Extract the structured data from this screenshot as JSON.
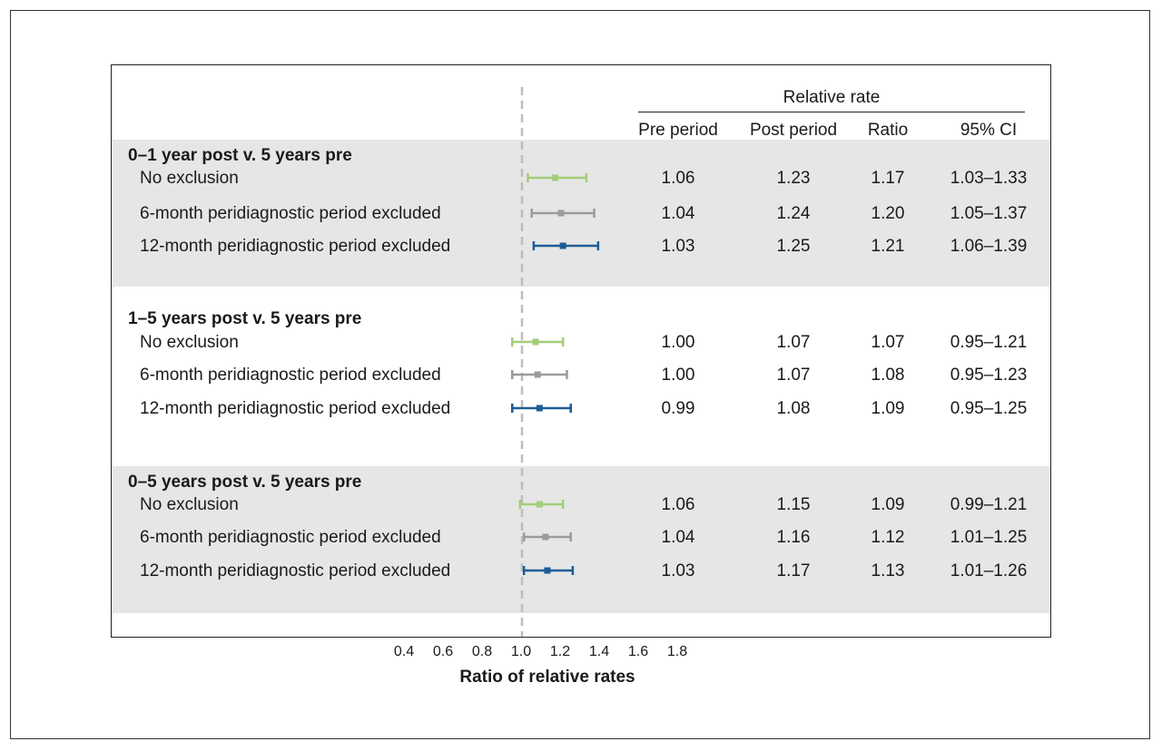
{
  "header": {
    "group_label": "Relative rate",
    "pre_period": "Pre period",
    "post_period": "Post period",
    "ratio": "Ratio",
    "ci": "95% CI"
  },
  "colors": {
    "no_exclusion": "#a3cd7a",
    "six_month": "#9b9b9b",
    "twelve_month": "#1e5b96",
    "reference_line": "#bdbdbd",
    "band": "#e6e6e7"
  },
  "chart_data": {
    "type": "forest",
    "xlabel": "Ratio of relative rates",
    "xlim": [
      0.4,
      1.8
    ],
    "xticks": [
      "0.4",
      "0.6",
      "0.8",
      "1.0",
      "1.2",
      "1.4",
      "1.6",
      "1.8"
    ],
    "reference_value": 1.0,
    "groups": [
      {
        "title": "0–1 year post v. 5 years pre",
        "rows": [
          {
            "label": "No exclusion",
            "pre": "1.06",
            "post": "1.23",
            "ratio": 1.17,
            "ratio_text": "1.17",
            "ci_text": "1.03–1.33",
            "lower": 1.03,
            "upper": 1.33
          },
          {
            "label": "6-month peridiagnostic period excluded",
            "pre": "1.04",
            "post": "1.24",
            "ratio": 1.2,
            "ratio_text": "1.20",
            "ci_text": "1.05–1.37",
            "lower": 1.05,
            "upper": 1.37
          },
          {
            "label": "12-month peridiagnostic period excluded",
            "pre": "1.03",
            "post": "1.25",
            "ratio": 1.21,
            "ratio_text": "1.21",
            "ci_text": "1.06–1.39",
            "lower": 1.06,
            "upper": 1.39
          }
        ]
      },
      {
        "title": "1–5 years post v. 5 years pre",
        "rows": [
          {
            "label": "No exclusion",
            "pre": "1.00",
            "post": "1.07",
            "ratio": 1.07,
            "ratio_text": "1.07",
            "ci_text": "0.95–1.21",
            "lower": 0.95,
            "upper": 1.21
          },
          {
            "label": "6-month peridiagnostic period excluded",
            "pre": "1.00",
            "post": "1.07",
            "ratio": 1.08,
            "ratio_text": "1.08",
            "ci_text": "0.95–1.23",
            "lower": 0.95,
            "upper": 1.23
          },
          {
            "label": "12-month peridiagnostic period excluded",
            "pre": "0.99",
            "post": "1.08",
            "ratio": 1.09,
            "ratio_text": "1.09",
            "ci_text": "0.95–1.25",
            "lower": 0.95,
            "upper": 1.25
          }
        ]
      },
      {
        "title": "0–5 years post v. 5 years pre",
        "rows": [
          {
            "label": "No exclusion",
            "pre": "1.06",
            "post": "1.15",
            "ratio": 1.09,
            "ratio_text": "1.09",
            "ci_text": "0.99–1.21",
            "lower": 0.99,
            "upper": 1.21
          },
          {
            "label": "6-month peridiagnostic period excluded",
            "pre": "1.04",
            "post": "1.16",
            "ratio": 1.12,
            "ratio_text": "1.12",
            "ci_text": "1.01–1.25",
            "lower": 1.01,
            "upper": 1.25
          },
          {
            "label": "12-month peridiagnostic period excluded",
            "pre": "1.03",
            "post": "1.17",
            "ratio": 1.13,
            "ratio_text": "1.13",
            "ci_text": "1.01–1.26",
            "lower": 1.01,
            "upper": 1.26
          }
        ]
      }
    ]
  }
}
